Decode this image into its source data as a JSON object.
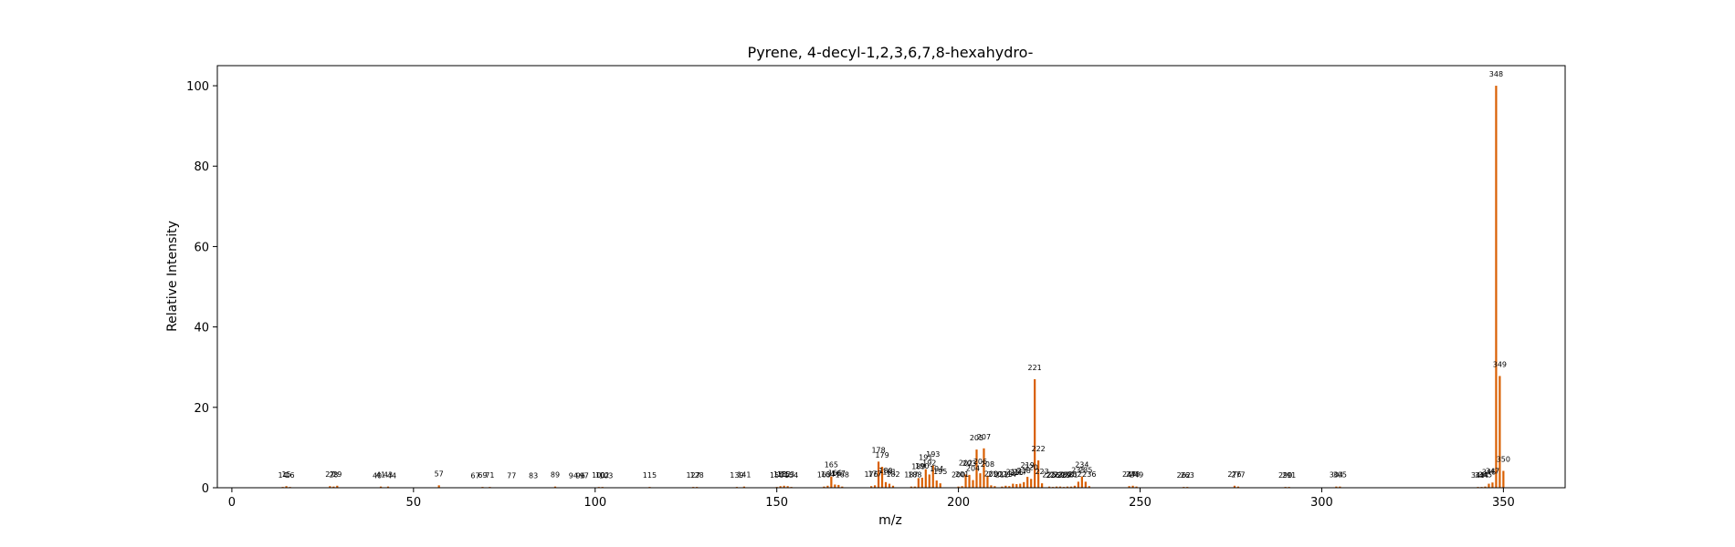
{
  "chart_data": {
    "type": "bar",
    "title": "Pyrene, 4-decyl-1,2,3,6,7,8-hexahydro-",
    "xlabel": "m/z",
    "ylabel": "Relative Intensity",
    "xlim": [
      -4,
      367
    ],
    "ylim": [
      0,
      105
    ],
    "xticks": [
      0,
      50,
      100,
      150,
      200,
      250,
      300,
      350
    ],
    "yticks": [
      0,
      20,
      40,
      60,
      80,
      100
    ],
    "bar_color": "#d95f02",
    "grid": false,
    "legend": "none",
    "peaks": [
      {
        "mz": 14,
        "intensity": 0.2
      },
      {
        "mz": 15,
        "intensity": 0.4
      },
      {
        "mz": 16,
        "intensity": 0.2
      },
      {
        "mz": 27,
        "intensity": 0.4
      },
      {
        "mz": 28,
        "intensity": 0.3
      },
      {
        "mz": 29,
        "intensity": 0.5
      },
      {
        "mz": 40,
        "intensity": 0.1
      },
      {
        "mz": 41,
        "intensity": 0.3
      },
      {
        "mz": 43,
        "intensity": 0.3
      },
      {
        "mz": 44,
        "intensity": 0.1
      },
      {
        "mz": 57,
        "intensity": 0.6
      },
      {
        "mz": 67,
        "intensity": 0.1
      },
      {
        "mz": 69,
        "intensity": 0.2
      },
      {
        "mz": 71,
        "intensity": 0.2
      },
      {
        "mz": 77,
        "intensity": 0.1
      },
      {
        "mz": 83,
        "intensity": 0.1
      },
      {
        "mz": 89,
        "intensity": 0.3
      },
      {
        "mz": 94,
        "intensity": 0.1
      },
      {
        "mz": 96,
        "intensity": 0.1
      },
      {
        "mz": 97,
        "intensity": 0.1
      },
      {
        "mz": 101,
        "intensity": 0.2
      },
      {
        "mz": 102,
        "intensity": 0.2
      },
      {
        "mz": 103,
        "intensity": 0.1
      },
      {
        "mz": 115,
        "intensity": 0.2
      },
      {
        "mz": 127,
        "intensity": 0.2
      },
      {
        "mz": 128,
        "intensity": 0.2
      },
      {
        "mz": 139,
        "intensity": 0.2
      },
      {
        "mz": 141,
        "intensity": 0.3
      },
      {
        "mz": 150,
        "intensity": 0.2
      },
      {
        "mz": 151,
        "intensity": 0.4
      },
      {
        "mz": 152,
        "intensity": 0.5
      },
      {
        "mz": 153,
        "intensity": 0.4
      },
      {
        "mz": 154,
        "intensity": 0.2
      },
      {
        "mz": 163,
        "intensity": 0.3
      },
      {
        "mz": 164,
        "intensity": 0.5
      },
      {
        "mz": 165,
        "intensity": 2.8
      },
      {
        "mz": 166,
        "intensity": 0.8
      },
      {
        "mz": 167,
        "intensity": 0.7
      },
      {
        "mz": 168,
        "intensity": 0.3
      },
      {
        "mz": 176,
        "intensity": 0.4
      },
      {
        "mz": 177,
        "intensity": 0.6
      },
      {
        "mz": 178,
        "intensity": 6.5
      },
      {
        "mz": 179,
        "intensity": 5.2
      },
      {
        "mz": 180,
        "intensity": 1.4
      },
      {
        "mz": 181,
        "intensity": 1.0
      },
      {
        "mz": 182,
        "intensity": 0.5
      },
      {
        "mz": 187,
        "intensity": 0.3
      },
      {
        "mz": 188,
        "intensity": 0.3
      },
      {
        "mz": 189,
        "intensity": 2.4
      },
      {
        "mz": 190,
        "intensity": 2.5
      },
      {
        "mz": 191,
        "intensity": 4.6
      },
      {
        "mz": 192,
        "intensity": 3.3
      },
      {
        "mz": 193,
        "intensity": 5.5
      },
      {
        "mz": 194,
        "intensity": 1.8
      },
      {
        "mz": 195,
        "intensity": 1.1
      },
      {
        "mz": 200,
        "intensity": 0.3
      },
      {
        "mz": 201,
        "intensity": 0.4
      },
      {
        "mz": 202,
        "intensity": 3.3
      },
      {
        "mz": 203,
        "intensity": 3.2
      },
      {
        "mz": 204,
        "intensity": 1.9
      },
      {
        "mz": 205,
        "intensity": 9.5
      },
      {
        "mz": 206,
        "intensity": 3.6
      },
      {
        "mz": 207,
        "intensity": 9.8
      },
      {
        "mz": 208,
        "intensity": 3.0
      },
      {
        "mz": 209,
        "intensity": 0.6
      },
      {
        "mz": 210,
        "intensity": 0.4
      },
      {
        "mz": 212,
        "intensity": 0.3
      },
      {
        "mz": 213,
        "intensity": 0.5
      },
      {
        "mz": 214,
        "intensity": 0.4
      },
      {
        "mz": 215,
        "intensity": 1.0
      },
      {
        "mz": 216,
        "intensity": 0.9
      },
      {
        "mz": 217,
        "intensity": 1.0
      },
      {
        "mz": 218,
        "intensity": 1.4
      },
      {
        "mz": 219,
        "intensity": 2.7
      },
      {
        "mz": 220,
        "intensity": 2.2
      },
      {
        "mz": 221,
        "intensity": 27.0
      },
      {
        "mz": 222,
        "intensity": 6.8
      },
      {
        "mz": 223,
        "intensity": 1.1
      },
      {
        "mz": 225,
        "intensity": 0.3
      },
      {
        "mz": 226,
        "intensity": 0.2
      },
      {
        "mz": 227,
        "intensity": 0.3
      },
      {
        "mz": 228,
        "intensity": 0.3
      },
      {
        "mz": 229,
        "intensity": 0.2
      },
      {
        "mz": 230,
        "intensity": 0.3
      },
      {
        "mz": 231,
        "intensity": 0.3
      },
      {
        "mz": 232,
        "intensity": 0.5
      },
      {
        "mz": 233,
        "intensity": 1.5
      },
      {
        "mz": 234,
        "intensity": 2.8
      },
      {
        "mz": 235,
        "intensity": 1.5
      },
      {
        "mz": 236,
        "intensity": 0.4
      },
      {
        "mz": 247,
        "intensity": 0.4
      },
      {
        "mz": 248,
        "intensity": 0.5
      },
      {
        "mz": 249,
        "intensity": 0.3
      },
      {
        "mz": 262,
        "intensity": 0.2
      },
      {
        "mz": 263,
        "intensity": 0.2
      },
      {
        "mz": 276,
        "intensity": 0.5
      },
      {
        "mz": 277,
        "intensity": 0.3
      },
      {
        "mz": 290,
        "intensity": 0.2
      },
      {
        "mz": 291,
        "intensity": 0.2
      },
      {
        "mz": 304,
        "intensity": 0.3
      },
      {
        "mz": 305,
        "intensity": 0.3
      },
      {
        "mz": 343,
        "intensity": 0.2
      },
      {
        "mz": 344,
        "intensity": 0.2
      },
      {
        "mz": 345,
        "intensity": 0.3
      },
      {
        "mz": 346,
        "intensity": 1.0
      },
      {
        "mz": 347,
        "intensity": 1.3
      },
      {
        "mz": 348,
        "intensity": 100.0
      },
      {
        "mz": 349,
        "intensity": 27.8
      },
      {
        "mz": 350,
        "intensity": 4.2
      }
    ],
    "peak_labels": [
      {
        "mz": 14,
        "text": "14"
      },
      {
        "mz": 15,
        "text": "15"
      },
      {
        "mz": 16,
        "text": "16"
      },
      {
        "mz": 27,
        "text": "27"
      },
      {
        "mz": 28,
        "text": "28"
      },
      {
        "mz": 29,
        "text": "29"
      },
      {
        "mz": 40,
        "text": "40"
      },
      {
        "mz": 41,
        "text": "41"
      },
      {
        "mz": 43,
        "text": "43"
      },
      {
        "mz": 44,
        "text": "44"
      },
      {
        "mz": 57,
        "text": "57"
      },
      {
        "mz": 67,
        "text": "67"
      },
      {
        "mz": 69,
        "text": "69"
      },
      {
        "mz": 71,
        "text": "71"
      },
      {
        "mz": 77,
        "text": "77"
      },
      {
        "mz": 83,
        "text": "83"
      },
      {
        "mz": 89,
        "text": "89"
      },
      {
        "mz": 94,
        "text": "94"
      },
      {
        "mz": 96,
        "text": "96"
      },
      {
        "mz": 97,
        "text": "97"
      },
      {
        "mz": 101,
        "text": "101"
      },
      {
        "mz": 102,
        "text": "102"
      },
      {
        "mz": 103,
        "text": "103"
      },
      {
        "mz": 115,
        "text": "115"
      },
      {
        "mz": 127,
        "text": "127"
      },
      {
        "mz": 128,
        "text": "128"
      },
      {
        "mz": 139,
        "text": "139"
      },
      {
        "mz": 141,
        "text": "141"
      },
      {
        "mz": 150,
        "text": "150"
      },
      {
        "mz": 151,
        "text": "151"
      },
      {
        "mz": 152,
        "text": "152"
      },
      {
        "mz": 153,
        "text": "153"
      },
      {
        "mz": 154,
        "text": "154"
      },
      {
        "mz": 163,
        "text": "163"
      },
      {
        "mz": 164,
        "text": "164"
      },
      {
        "mz": 165,
        "text": "165"
      },
      {
        "mz": 166,
        "text": "166"
      },
      {
        "mz": 167,
        "text": "167"
      },
      {
        "mz": 168,
        "text": "168"
      },
      {
        "mz": 176,
        "text": "176"
      },
      {
        "mz": 177,
        "text": "177"
      },
      {
        "mz": 178,
        "text": "178"
      },
      {
        "mz": 179,
        "text": "179"
      },
      {
        "mz": 180,
        "text": "180"
      },
      {
        "mz": 181,
        "text": "181"
      },
      {
        "mz": 182,
        "text": "182"
      },
      {
        "mz": 187,
        "text": "187"
      },
      {
        "mz": 188,
        "text": "188"
      },
      {
        "mz": 189,
        "text": "189"
      },
      {
        "mz": 190,
        "text": "190"
      },
      {
        "mz": 191,
        "text": "191"
      },
      {
        "mz": 192,
        "text": "192"
      },
      {
        "mz": 193,
        "text": "193"
      },
      {
        "mz": 194,
        "text": "194"
      },
      {
        "mz": 195,
        "text": "195"
      },
      {
        "mz": 200,
        "text": "200"
      },
      {
        "mz": 201,
        "text": "201"
      },
      {
        "mz": 202,
        "text": "202"
      },
      {
        "mz": 203,
        "text": "203"
      },
      {
        "mz": 204,
        "text": "204"
      },
      {
        "mz": 205,
        "text": "205"
      },
      {
        "mz": 206,
        "text": "206"
      },
      {
        "mz": 207,
        "text": "207"
      },
      {
        "mz": 208,
        "text": "208"
      },
      {
        "mz": 209,
        "text": "209"
      },
      {
        "mz": 210,
        "text": "210"
      },
      {
        "mz": 212,
        "text": "212"
      },
      {
        "mz": 213,
        "text": "213"
      },
      {
        "mz": 214,
        "text": "214"
      },
      {
        "mz": 215,
        "text": "215"
      },
      {
        "mz": 216,
        "text": "216"
      },
      {
        "mz": 217,
        "text": "217"
      },
      {
        "mz": 218,
        "text": "218"
      },
      {
        "mz": 219,
        "text": "219"
      },
      {
        "mz": 220,
        "text": "220"
      },
      {
        "mz": 221,
        "text": "221"
      },
      {
        "mz": 222,
        "text": "222"
      },
      {
        "mz": 223,
        "text": "223"
      },
      {
        "mz": 225,
        "text": "225"
      },
      {
        "mz": 226,
        "text": "226"
      },
      {
        "mz": 227,
        "text": "227"
      },
      {
        "mz": 228,
        "text": "228"
      },
      {
        "mz": 229,
        "text": "229"
      },
      {
        "mz": 230,
        "text": "230"
      },
      {
        "mz": 231,
        "text": "231"
      },
      {
        "mz": 232,
        "text": "232"
      },
      {
        "mz": 233,
        "text": "233"
      },
      {
        "mz": 234,
        "text": "234"
      },
      {
        "mz": 235,
        "text": "235"
      },
      {
        "mz": 236,
        "text": "236"
      },
      {
        "mz": 247,
        "text": "247"
      },
      {
        "mz": 248,
        "text": "248"
      },
      {
        "mz": 249,
        "text": "249"
      },
      {
        "mz": 262,
        "text": "262"
      },
      {
        "mz": 263,
        "text": "263"
      },
      {
        "mz": 276,
        "text": "276"
      },
      {
        "mz": 277,
        "text": "277"
      },
      {
        "mz": 290,
        "text": "290"
      },
      {
        "mz": 291,
        "text": "291"
      },
      {
        "mz": 304,
        "text": "304"
      },
      {
        "mz": 305,
        "text": "305"
      },
      {
        "mz": 343,
        "text": "343"
      },
      {
        "mz": 344,
        "text": "344"
      },
      {
        "mz": 345,
        "text": "345"
      },
      {
        "mz": 346,
        "text": "346"
      },
      {
        "mz": 347,
        "text": "347"
      },
      {
        "mz": 348,
        "text": "348"
      },
      {
        "mz": 349,
        "text": "349"
      },
      {
        "mz": 350,
        "text": "350"
      }
    ]
  }
}
